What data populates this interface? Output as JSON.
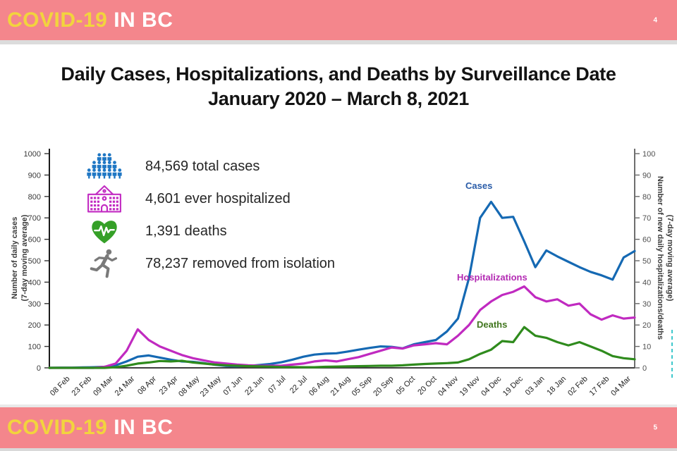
{
  "header": {
    "brand_covid": "COVID-19",
    "brand_bc": " IN BC",
    "page_number": "4"
  },
  "footer": {
    "brand_covid": "COVID-19",
    "brand_bc": " IN BC",
    "page_number": "5"
  },
  "title": {
    "line1": "Daily Cases, Hospitalizations, and Deaths by Surveillance Date",
    "line2": "January 2020 – March 8, 2021"
  },
  "stats": [
    {
      "icon": "people-crowd-icon",
      "text": "84,569 total cases"
    },
    {
      "icon": "hospital-icon",
      "text": "4,601 ever hospitalized"
    },
    {
      "icon": "heart-ekg-icon",
      "text": "1,391 deaths"
    },
    {
      "icon": "running-person-icon",
      "text": "78,237 removed from isolation"
    }
  ],
  "colors": {
    "banner": "#f4868c",
    "brand_yellow": "#f2d43d",
    "brand_white": "#ffffff",
    "title_text": "#131313",
    "axis_text": "#3a3a3a",
    "teal_artifact": "#3fc8cc"
  },
  "chart_data": {
    "type": "line",
    "title": "Daily Cases, Hospitalizations, and Deaths by Surveillance Date, January 2020 – March 8, 2021",
    "grid": false,
    "legend_position": "labels-on-chart",
    "x_tick_labels": [
      "08 Feb",
      "23 Feb",
      "09 Mar",
      "24 Mar",
      "08 Apr",
      "23 Apr",
      "08 May",
      "23 May",
      "07 Jun",
      "22 Jun",
      "07 Jul",
      "22 Jul",
      "06 Aug",
      "21 Aug",
      "05 Sep",
      "20 Sep",
      "05 Oct",
      "20 Oct",
      "04 Nov",
      "19 Nov",
      "04 Dec",
      "19 Dec",
      "03 Jan",
      "18 Jan",
      "02 Feb",
      "17 Feb",
      "04 Mar"
    ],
    "y_left": {
      "label_line1": "Number of daily cases",
      "label_line2": "(7-day moving average)",
      "min": 0,
      "max": 1000,
      "step": 100
    },
    "y_right": {
      "label_line1": "Number of new daily hospitalizations/deaths",
      "label_line2": "(7-day moving average)",
      "min": 0,
      "max": 100,
      "step": 10
    },
    "x_note": "values sampled ~every 7.7 days from late Jan 2020 (left axis) to 8 Mar 2021 (right axis)",
    "series": [
      {
        "name": "Cases",
        "axis": "left",
        "color": "#1569b3",
        "label_color": "#2a5ca8",
        "values": [
          0,
          1,
          1,
          2,
          3,
          5,
          12,
          30,
          52,
          58,
          48,
          38,
          30,
          28,
          22,
          14,
          9,
          8,
          9,
          13,
          18,
          26,
          38,
          52,
          62,
          66,
          68,
          76,
          85,
          93,
          100,
          98,
          91,
          110,
          120,
          130,
          170,
          230,
          420,
          700,
          775,
          700,
          705,
          590,
          470,
          548,
          520,
          495,
          470,
          448,
          432,
          412,
          515,
          545
        ]
      },
      {
        "name": "Hospitalizations",
        "axis": "right",
        "color": "#c02ac0",
        "label_color": "#b32ab3",
        "values": [
          0,
          0,
          0,
          0,
          0,
          0.5,
          2,
          8,
          18,
          13,
          10,
          8,
          6,
          4.5,
          3.5,
          2.5,
          2,
          1.5,
          1.2,
          1,
          1,
          1,
          1.5,
          2,
          3,
          3.5,
          3,
          4,
          5,
          6.5,
          8,
          9.5,
          9,
          10.5,
          11,
          11.5,
          11,
          15,
          20,
          27,
          31,
          34,
          35.5,
          38,
          33,
          31,
          32,
          29,
          30,
          25,
          22.5,
          24.5,
          23,
          23.5
        ]
      },
      {
        "name": "Deaths",
        "axis": "right",
        "color": "#2f8b1d",
        "label_color": "#41761f",
        "values": [
          0,
          0,
          0,
          0,
          0,
          0,
          0.3,
          1,
          2,
          2.5,
          3.2,
          3,
          3.3,
          2.5,
          2,
          1.5,
          1.2,
          1,
          0.8,
          0.7,
          0.6,
          0.4,
          0.4,
          0.3,
          0.3,
          0.5,
          0.6,
          0.7,
          0.8,
          0.9,
          1,
          1,
          1.2,
          1.5,
          1.8,
          2,
          2.2,
          2.5,
          4,
          6.5,
          8.5,
          12.5,
          12,
          19,
          15,
          14,
          12,
          10.5,
          12,
          10,
          8,
          5.5,
          4.5,
          4
        ]
      }
    ],
    "series_label_pos": [
      {
        "x": 660,
        "y": 73
      },
      {
        "x": 648,
        "y": 203
      },
      {
        "x": 676,
        "y": 270
      }
    ]
  }
}
